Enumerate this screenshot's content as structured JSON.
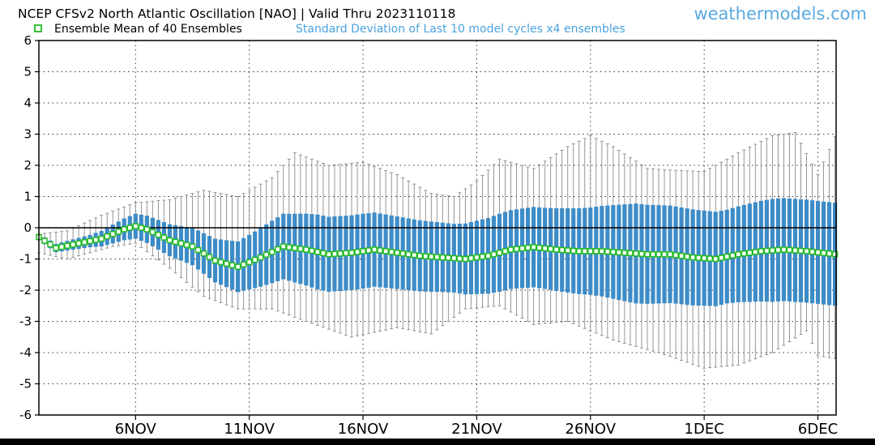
{
  "chart_data": {
    "type": "line",
    "title": "NCEP CFSv2 North Atlantic Oscillation [NAO] | Valid Thru 2023110118",
    "watermark": "weathermodels.com",
    "legend": {
      "mean_label": "Ensemble Mean of 40 Ensembles",
      "spread_label": "Standard Deviation of Last 10 model cycles x4 ensembles",
      "placement": "top"
    },
    "ylim": [
      -6,
      6
    ],
    "y_ticks": [
      6,
      5,
      4,
      3,
      2,
      1,
      0,
      -1,
      -2,
      -3,
      -4,
      -5,
      -6
    ],
    "x_range_days": [
      1.75,
      36.8
    ],
    "x_ticks": [
      {
        "day": 6,
        "label": "6NOV"
      },
      {
        "day": 11,
        "label": "11NOV"
      },
      {
        "day": 16,
        "label": "16NOV"
      },
      {
        "day": 21,
        "label": "21NOV"
      },
      {
        "day": 26,
        "label": "26NOV"
      },
      {
        "day": 31,
        "label": "1DEC"
      },
      {
        "day": 36,
        "label": "6DEC"
      }
    ],
    "grid": true,
    "colors": {
      "mean_line": "#22bb22",
      "spread_bar": "#3d8cc8",
      "range_line": "#8a8a8a",
      "zero_line": "#000000",
      "watermark": "#5aaae0",
      "spread_label": "#4aa3df"
    },
    "ensemble_mean": [
      {
        "day": 1.75,
        "value": -0.3
      },
      {
        "day": 2.5,
        "value": -0.65
      },
      {
        "day": 3.5,
        "value": -0.5
      },
      {
        "day": 4.5,
        "value": -0.35
      },
      {
        "day": 5.5,
        "value": -0.05
      },
      {
        "day": 6.0,
        "value": 0.05
      },
      {
        "day": 6.5,
        "value": -0.05
      },
      {
        "day": 7.5,
        "value": -0.4
      },
      {
        "day": 8.5,
        "value": -0.6
      },
      {
        "day": 9.5,
        "value": -1.05
      },
      {
        "day": 10.5,
        "value": -1.25
      },
      {
        "day": 11.5,
        "value": -0.95
      },
      {
        "day": 12.5,
        "value": -0.6
      },
      {
        "day": 13.5,
        "value": -0.7
      },
      {
        "day": 14.5,
        "value": -0.85
      },
      {
        "day": 15.5,
        "value": -0.8
      },
      {
        "day": 16.5,
        "value": -0.7
      },
      {
        "day": 17.5,
        "value": -0.8
      },
      {
        "day": 18.5,
        "value": -0.9
      },
      {
        "day": 19.5,
        "value": -0.95
      },
      {
        "day": 20.5,
        "value": -1.0
      },
      {
        "day": 21.5,
        "value": -0.9
      },
      {
        "day": 22.5,
        "value": -0.7
      },
      {
        "day": 23.5,
        "value": -0.62
      },
      {
        "day": 24.5,
        "value": -0.7
      },
      {
        "day": 25.5,
        "value": -0.75
      },
      {
        "day": 26.5,
        "value": -0.75
      },
      {
        "day": 27.5,
        "value": -0.8
      },
      {
        "day": 28.5,
        "value": -0.85
      },
      {
        "day": 29.5,
        "value": -0.85
      },
      {
        "day": 30.5,
        "value": -0.95
      },
      {
        "day": 31.5,
        "value": -1.0
      },
      {
        "day": 32.5,
        "value": -0.85
      },
      {
        "day": 33.5,
        "value": -0.75
      },
      {
        "day": 34.5,
        "value": -0.7
      },
      {
        "day": 35.5,
        "value": -0.75
      },
      {
        "day": 36.8,
        "value": -0.85
      }
    ],
    "spread_half_width": [
      {
        "day": 1.75,
        "value": 0.1
      },
      {
        "day": 4.0,
        "value": 0.2
      },
      {
        "day": 6.0,
        "value": 0.4
      },
      {
        "day": 8.0,
        "value": 0.55
      },
      {
        "day": 10.0,
        "value": 0.75
      },
      {
        "day": 12.0,
        "value": 1.0
      },
      {
        "day": 14.0,
        "value": 1.2
      },
      {
        "day": 16.0,
        "value": 1.2
      },
      {
        "day": 18.0,
        "value": 1.15
      },
      {
        "day": 20.0,
        "value": 1.1
      },
      {
        "day": 22.0,
        "value": 1.25
      },
      {
        "day": 24.0,
        "value": 1.3
      },
      {
        "day": 26.0,
        "value": 1.4
      },
      {
        "day": 28.0,
        "value": 1.6
      },
      {
        "day": 30.0,
        "value": 1.55
      },
      {
        "day": 32.0,
        "value": 1.5
      },
      {
        "day": 34.0,
        "value": 1.65
      },
      {
        "day": 36.8,
        "value": 1.65
      }
    ],
    "range_max": [
      {
        "day": 1.75,
        "value": -0.2
      },
      {
        "day": 3.0,
        "value": -0.1
      },
      {
        "day": 4.5,
        "value": 0.4
      },
      {
        "day": 6.0,
        "value": 0.8
      },
      {
        "day": 7.5,
        "value": 0.9
      },
      {
        "day": 9.0,
        "value": 1.2
      },
      {
        "day": 10.5,
        "value": 1.0
      },
      {
        "day": 12.0,
        "value": 1.6
      },
      {
        "day": 13.0,
        "value": 2.4
      },
      {
        "day": 14.5,
        "value": 2.0
      },
      {
        "day": 16.0,
        "value": 2.1
      },
      {
        "day": 17.5,
        "value": 1.7
      },
      {
        "day": 19.0,
        "value": 1.1
      },
      {
        "day": 20.0,
        "value": 1.0
      },
      {
        "day": 21.0,
        "value": 1.5
      },
      {
        "day": 22.0,
        "value": 2.2
      },
      {
        "day": 23.5,
        "value": 1.9
      },
      {
        "day": 25.0,
        "value": 2.6
      },
      {
        "day": 26.0,
        "value": 2.95
      },
      {
        "day": 27.0,
        "value": 2.6
      },
      {
        "day": 28.5,
        "value": 1.9
      },
      {
        "day": 29.5,
        "value": 1.85
      },
      {
        "day": 31.0,
        "value": 1.8
      },
      {
        "day": 32.5,
        "value": 2.4
      },
      {
        "day": 34.0,
        "value": 2.95
      },
      {
        "day": 35.0,
        "value": 3.05
      },
      {
        "day": 36.0,
        "value": 1.7
      },
      {
        "day": 36.8,
        "value": 3.0
      }
    ],
    "range_min": [
      {
        "day": 1.75,
        "value": -0.8
      },
      {
        "day": 3.0,
        "value": -1.0
      },
      {
        "day": 5.0,
        "value": -0.6
      },
      {
        "day": 6.0,
        "value": -0.5
      },
      {
        "day": 7.5,
        "value": -1.3
      },
      {
        "day": 9.0,
        "value": -2.2
      },
      {
        "day": 10.5,
        "value": -2.6
      },
      {
        "day": 12.0,
        "value": -2.6
      },
      {
        "day": 13.5,
        "value": -3.0
      },
      {
        "day": 15.5,
        "value": -3.5
      },
      {
        "day": 17.5,
        "value": -3.2
      },
      {
        "day": 19.0,
        "value": -3.4
      },
      {
        "day": 20.5,
        "value": -2.6
      },
      {
        "day": 22.0,
        "value": -2.5
      },
      {
        "day": 23.5,
        "value": -3.1
      },
      {
        "day": 25.0,
        "value": -3.0
      },
      {
        "day": 27.0,
        "value": -3.6
      },
      {
        "day": 29.0,
        "value": -4.0
      },
      {
        "day": 31.0,
        "value": -4.5
      },
      {
        "day": 32.5,
        "value": -4.4
      },
      {
        "day": 34.0,
        "value": -4.0
      },
      {
        "day": 35.5,
        "value": -3.3
      },
      {
        "day": 36.0,
        "value": -4.1
      },
      {
        "day": 36.8,
        "value": -4.2
      }
    ]
  }
}
